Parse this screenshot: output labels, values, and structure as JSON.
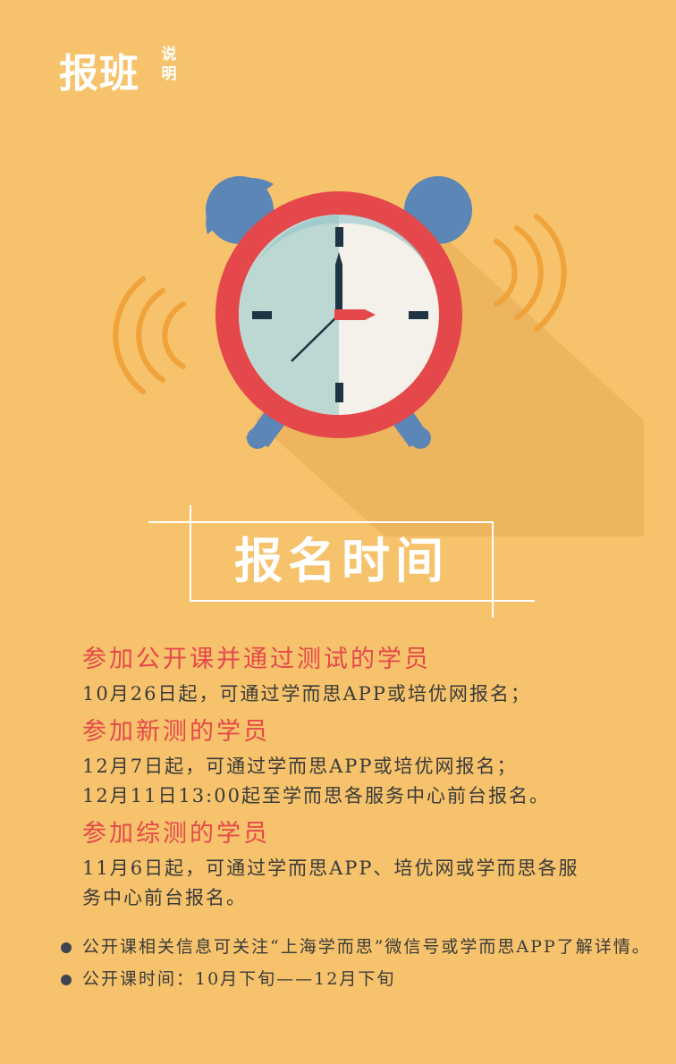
{
  "header": {
    "title": "报班",
    "subtitle": "说明"
  },
  "banner": {
    "title": "报名时间"
  },
  "sections": [
    {
      "title": "参加公开课并通过测试的学员",
      "lines": [
        "10月26日起，可通过学而思APP或培优网报名；"
      ]
    },
    {
      "title": "参加新测的学员",
      "lines": [
        "12月7日起，可通过学而思APP或培优网报名；",
        "12月11日13:00起至学而思各服务中心前台报名。"
      ]
    },
    {
      "title": "参加综测的学员",
      "lines": [
        "11月6日起，可通过学而思APP、培优网或学而思各服",
        "务中心前台报名。"
      ]
    }
  ],
  "notes": [
    "公开课相关信息可关注“上海学而思”微信号或学而思APP了解详情。",
    "公开课时间：10月下旬——12月下旬"
  ],
  "colors": {
    "background": "#F6C36C",
    "accent_red": "#E5484A",
    "clock_blue": "#5B86B5",
    "text_dark": "#3A3A3A"
  },
  "illustration": {
    "icon": "alarm-clock-icon"
  }
}
